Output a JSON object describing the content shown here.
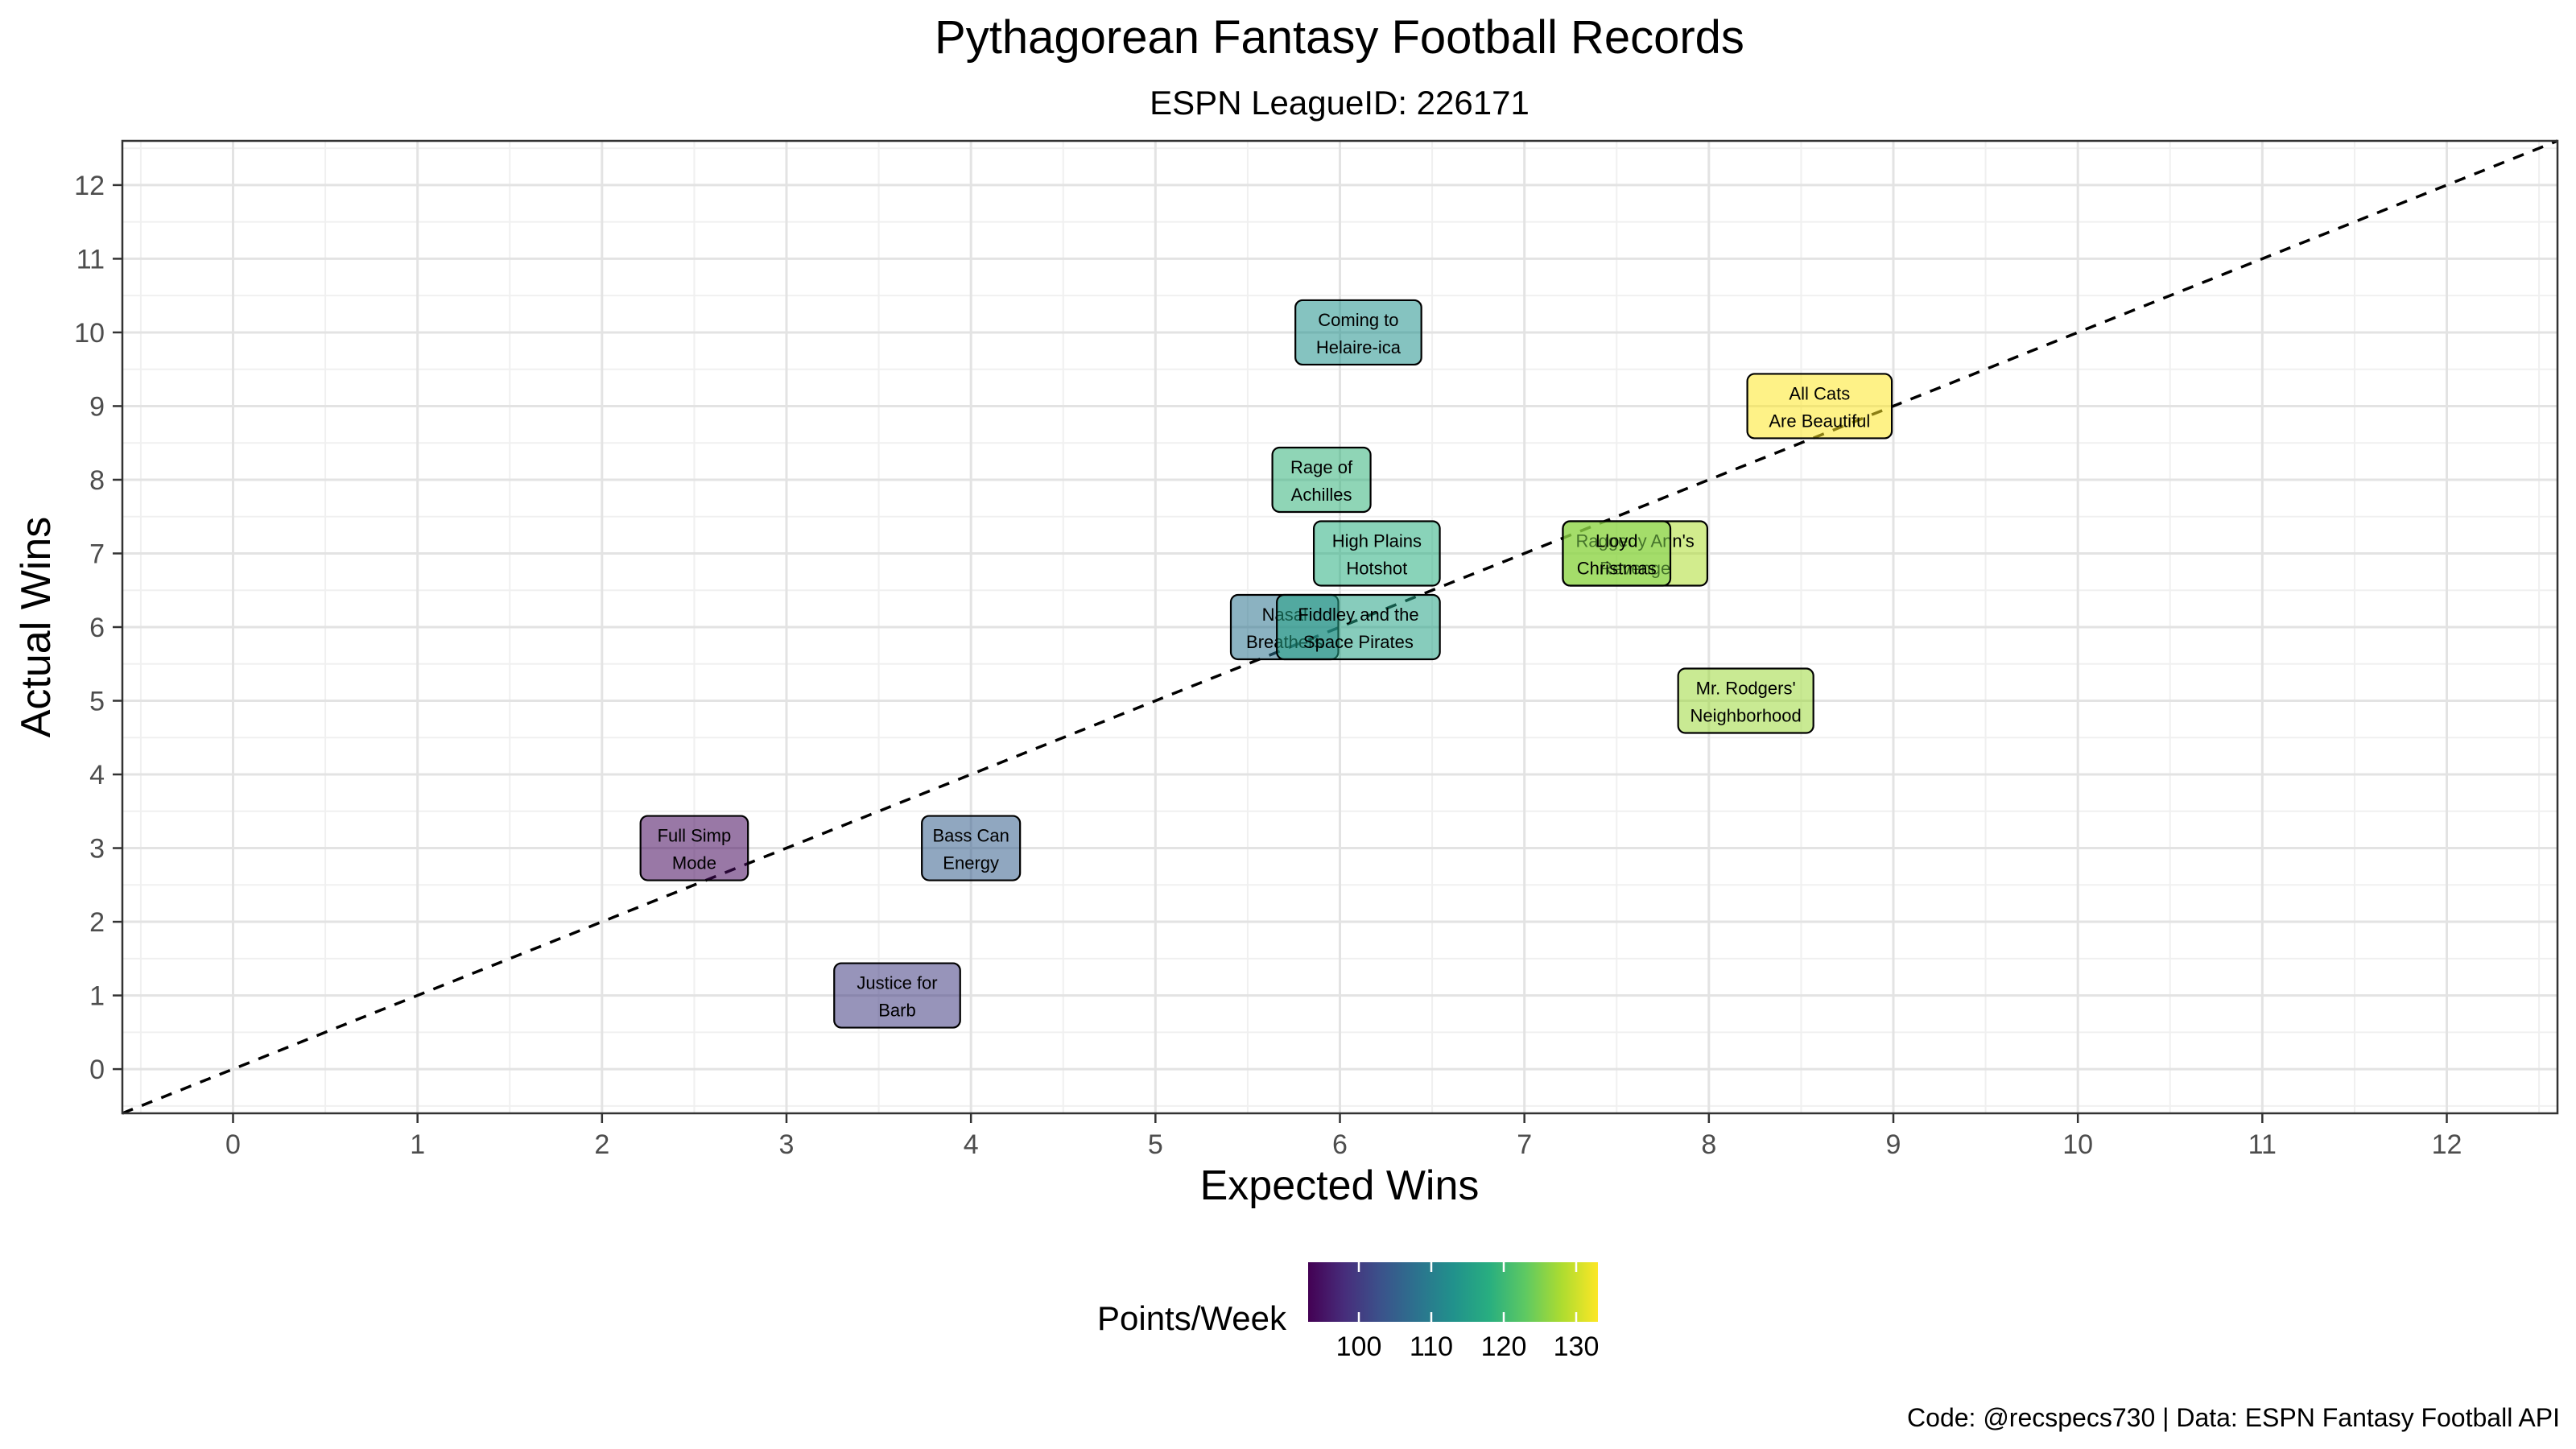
{
  "chart_data": {
    "type": "scatter",
    "title": "Pythagorean Fantasy Football Records",
    "subtitle": "ESPN LeagueID: 226171",
    "xlabel": "Expected Wins",
    "ylabel": "Actual Wins",
    "xlim": [
      -0.6,
      12.6
    ],
    "ylim": [
      -0.6,
      12.6
    ],
    "xticks": [
      "0",
      "1",
      "2",
      "3",
      "4",
      "5",
      "6",
      "7",
      "8",
      "9",
      "10",
      "11",
      "12"
    ],
    "yticks": [
      "0",
      "1",
      "2",
      "3",
      "4",
      "5",
      "6",
      "7",
      "8",
      "9",
      "10",
      "11",
      "12"
    ],
    "grid": true,
    "reference_line": "y = x (dashed)",
    "legend": {
      "title": "Points/Week",
      "position": "bottom",
      "type": "colorbar",
      "palette": "viridis",
      "range": [
        93,
        133
      ],
      "ticks": [
        "100",
        "110",
        "120",
        "130"
      ]
    },
    "points": [
      {
        "label_lines": [
          "Coming to",
          "Helaire-ica"
        ],
        "x": 6.1,
        "y": 10,
        "ppw": 113
      },
      {
        "label_lines": [
          "All Cats",
          "Are Beautiful"
        ],
        "x": 8.6,
        "y": 9,
        "ppw": 133
      },
      {
        "label_lines": [
          "Rage of",
          "Achilles"
        ],
        "x": 5.9,
        "y": 8,
        "ppw": 119
      },
      {
        "label_lines": [
          "High Plains",
          "Hotshot"
        ],
        "x": 6.2,
        "y": 7,
        "ppw": 118
      },
      {
        "label_lines": [
          "Raggedy Ann's",
          "Revenge"
        ],
        "x": 7.6,
        "y": 7,
        "ppw": 128
      },
      {
        "label_lines": [
          "Lloyd",
          "Christmas"
        ],
        "x": 7.5,
        "y": 7,
        "ppw": 125
      },
      {
        "label_lines": [
          "Nasal",
          "Breathers"
        ],
        "x": 5.7,
        "y": 6,
        "ppw": 108
      },
      {
        "label_lines": [
          "Fiddley and the",
          "Space Pirates"
        ],
        "x": 6.1,
        "y": 6,
        "ppw": 116
      },
      {
        "label_lines": [
          "Mr. Rodgers'",
          "Neighborhood"
        ],
        "x": 8.2,
        "y": 5,
        "ppw": 127
      },
      {
        "label_lines": [
          "Full Simp",
          "Mode"
        ],
        "x": 2.5,
        "y": 3,
        "ppw": 94
      },
      {
        "label_lines": [
          "Bass Can",
          "Energy"
        ],
        "x": 4.0,
        "y": 3,
        "ppw": 105
      },
      {
        "label_lines": [
          "Justice for",
          "Barb"
        ],
        "x": 3.6,
        "y": 1,
        "ppw": 100
      }
    ]
  },
  "caption": "Code: @recspecs730 | Data: ESPN Fantasy Football API"
}
